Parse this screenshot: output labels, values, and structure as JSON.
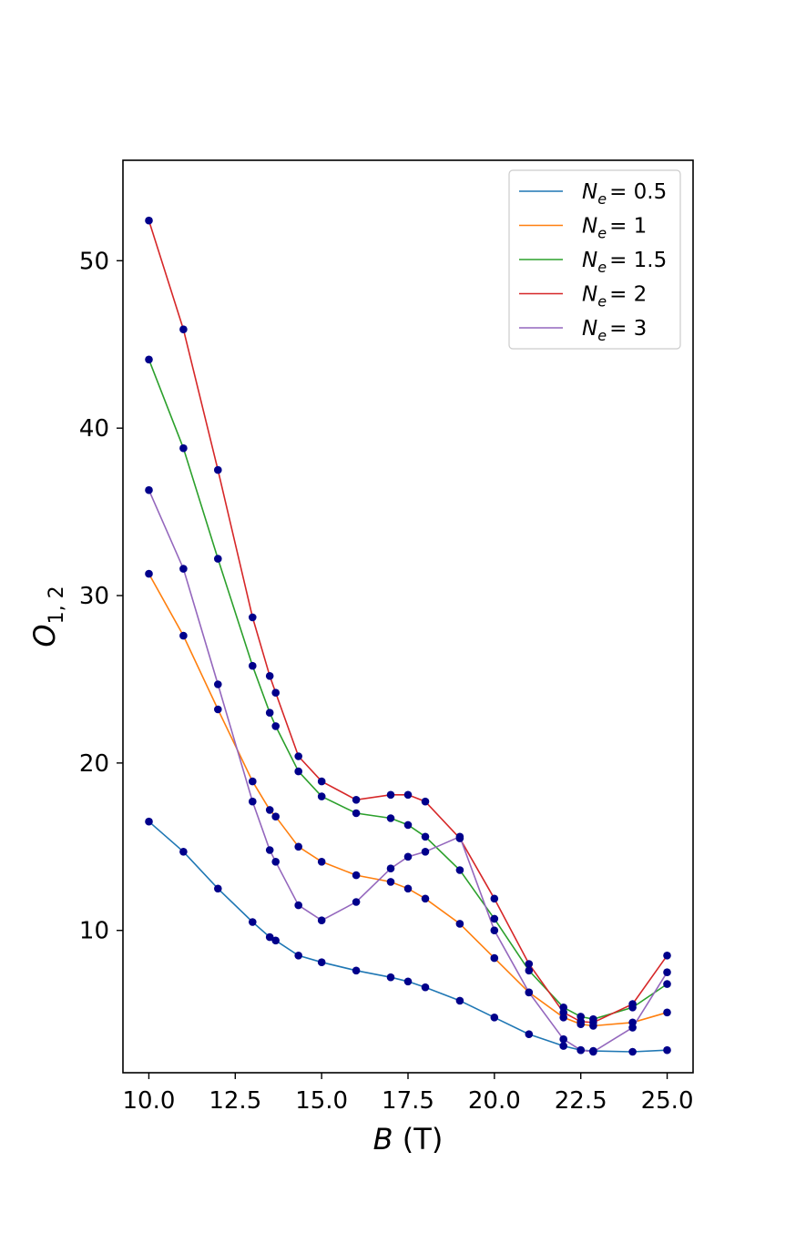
{
  "chart_data": {
    "type": "line",
    "xlabel": "B (T)",
    "xlabel_var": "B",
    "xlabel_unit": " (T)",
    "ylabel": "O_{1,2}",
    "ylabel_var": "O",
    "ylabel_sub": "1, 2",
    "xlim": [
      9.25,
      25.75
    ],
    "ylim": [
      1.5,
      56.0
    ],
    "xticks": [
      10.0,
      12.5,
      15.0,
      17.5,
      20.0,
      22.5,
      25.0
    ],
    "xtick_labels": [
      "10.0",
      "12.5",
      "15.0",
      "17.5",
      "20.0",
      "22.5",
      "25.0"
    ],
    "yticks": [
      10,
      20,
      30,
      40,
      50
    ],
    "ytick_labels": [
      "10",
      "20",
      "30",
      "40",
      "50"
    ],
    "grid": false,
    "legend_position": "top-right",
    "marker_color": "#00008b",
    "series": [
      {
        "name": "N_e = 0.5",
        "label_var": "N",
        "label_sub": "e",
        "label_value": "= 0.5",
        "color": "#1f77b4",
        "x": [
          10,
          11,
          12,
          13,
          13.5,
          13.67,
          14.33,
          15,
          16,
          17,
          17.5,
          18,
          19,
          20,
          21,
          22,
          22.5,
          22.86,
          24,
          25
        ],
        "y": [
          16.5,
          14.7,
          12.5,
          10.5,
          9.6,
          9.4,
          8.5,
          8.1,
          7.6,
          7.2,
          6.95,
          6.6,
          5.8,
          4.8,
          3.8,
          3.1,
          2.85,
          2.8,
          2.75,
          2.85
        ]
      },
      {
        "name": "N_e = 1",
        "label_var": "N",
        "label_sub": "e",
        "label_value": "= 1",
        "color": "#ff7f0e",
        "x": [
          10,
          11,
          12,
          13,
          13.5,
          13.67,
          14.33,
          15,
          16,
          17,
          17.5,
          18,
          19,
          20,
          21,
          22,
          22.5,
          22.86,
          24,
          25
        ],
        "y": [
          31.3,
          27.6,
          23.2,
          18.9,
          17.2,
          16.8,
          15.0,
          14.1,
          13.3,
          12.9,
          12.5,
          11.9,
          10.4,
          8.35,
          6.3,
          4.8,
          4.4,
          4.3,
          4.5,
          5.1
        ]
      },
      {
        "name": "N_e = 1.5",
        "label_var": "N",
        "label_sub": "e",
        "label_value": "= 1.5",
        "color": "#2ca02c",
        "x": [
          10,
          11,
          12,
          13,
          13.5,
          13.67,
          14.33,
          15,
          16,
          17,
          17.5,
          18,
          19,
          20,
          21,
          22,
          22.5,
          22.86,
          24,
          25
        ],
        "y": [
          44.1,
          38.8,
          32.2,
          25.8,
          23.0,
          22.2,
          19.5,
          18.0,
          17.0,
          16.7,
          16.3,
          15.6,
          13.6,
          10.7,
          7.6,
          5.4,
          4.85,
          4.7,
          5.4,
          6.8
        ]
      },
      {
        "name": "N_e = 2",
        "label_var": "N",
        "label_sub": "e",
        "label_value": "= 2",
        "color": "#d62728",
        "x": [
          10,
          11,
          12,
          13,
          13.5,
          13.67,
          14.33,
          15,
          16,
          17,
          17.5,
          18,
          19,
          20,
          21,
          22,
          22.5,
          22.86,
          24,
          25
        ],
        "y": [
          52.4,
          45.9,
          37.5,
          28.7,
          25.2,
          24.2,
          20.4,
          18.9,
          17.8,
          18.1,
          18.1,
          17.7,
          15.5,
          11.9,
          8.0,
          5.1,
          4.55,
          4.5,
          5.6,
          8.5
        ]
      },
      {
        "name": "N_e = 3",
        "label_var": "N",
        "label_sub": "e",
        "label_value": "= 3",
        "color": "#9467bd",
        "x": [
          10,
          11,
          12,
          13,
          13.5,
          13.67,
          14.33,
          15,
          16,
          17,
          17.5,
          18,
          19,
          20,
          21,
          22,
          22.5,
          22.86,
          24,
          25
        ],
        "y": [
          36.3,
          31.6,
          24.7,
          17.7,
          14.8,
          14.1,
          11.5,
          10.6,
          11.7,
          13.7,
          14.4,
          14.7,
          15.6,
          10.0,
          6.3,
          3.5,
          2.85,
          2.75,
          4.2,
          7.5
        ]
      }
    ]
  }
}
